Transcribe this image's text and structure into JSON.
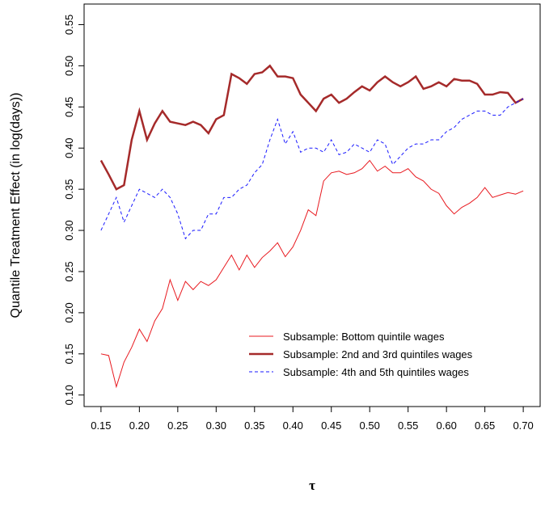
{
  "chart_data": {
    "type": "line",
    "xlabel": "τ",
    "ylabel": "Quantile Treatment Effect (in log(days))",
    "x": [
      0.15,
      0.16,
      0.17,
      0.18,
      0.19,
      0.2,
      0.21,
      0.22,
      0.23,
      0.24,
      0.25,
      0.26,
      0.27,
      0.28,
      0.29,
      0.3,
      0.31,
      0.32,
      0.33,
      0.34,
      0.35,
      0.36,
      0.37,
      0.38,
      0.39,
      0.4,
      0.41,
      0.42,
      0.43,
      0.44,
      0.45,
      0.46,
      0.47,
      0.48,
      0.49,
      0.5,
      0.51,
      0.52,
      0.53,
      0.54,
      0.55,
      0.56,
      0.57,
      0.58,
      0.59,
      0.6,
      0.61,
      0.62,
      0.63,
      0.64,
      0.65,
      0.66,
      0.67,
      0.68,
      0.69,
      0.7
    ],
    "series": [
      {
        "name": "Subsample: Bottom quintile wages",
        "color": "#e8191f",
        "width": 1,
        "dash": "none",
        "values": [
          0.15,
          0.148,
          0.11,
          0.14,
          0.158,
          0.18,
          0.165,
          0.19,
          0.205,
          0.24,
          0.215,
          0.238,
          0.228,
          0.238,
          0.233,
          0.24,
          0.255,
          0.27,
          0.252,
          0.27,
          0.255,
          0.267,
          0.275,
          0.285,
          0.268,
          0.28,
          0.3,
          0.325,
          0.318,
          0.36,
          0.37,
          0.372,
          0.368,
          0.37,
          0.375,
          0.385,
          0.372,
          0.378,
          0.37,
          0.37,
          0.375,
          0.365,
          0.36,
          0.35,
          0.345,
          0.33,
          0.32,
          0.328,
          0.333,
          0.34,
          0.352,
          0.34,
          0.343,
          0.346,
          0.344,
          0.348
        ]
      },
      {
        "name": "Subsample: 2nd and 3rd quintiles wages",
        "color": "#a52a2a",
        "width": 2.5,
        "dash": "none",
        "values": [
          0.385,
          0.368,
          0.35,
          0.355,
          0.41,
          0.445,
          0.41,
          0.43,
          0.445,
          0.432,
          0.43,
          0.428,
          0.432,
          0.428,
          0.418,
          0.435,
          0.44,
          0.49,
          0.485,
          0.478,
          0.49,
          0.492,
          0.5,
          0.487,
          0.487,
          0.485,
          0.465,
          0.455,
          0.445,
          0.46,
          0.465,
          0.455,
          0.46,
          0.468,
          0.475,
          0.47,
          0.48,
          0.487,
          0.48,
          0.475,
          0.48,
          0.487,
          0.472,
          0.475,
          0.48,
          0.475,
          0.484,
          0.482,
          0.482,
          0.478,
          0.465,
          0.465,
          0.468,
          0.467,
          0.455,
          0.46
        ]
      },
      {
        "name": "Subsample: 4th and 5th quintiles wages",
        "color": "#1a1aff",
        "width": 1,
        "dash": "4 3",
        "values": [
          0.3,
          0.32,
          0.34,
          0.31,
          0.33,
          0.35,
          0.345,
          0.34,
          0.35,
          0.34,
          0.32,
          0.29,
          0.3,
          0.3,
          0.32,
          0.32,
          0.34,
          0.34,
          0.35,
          0.355,
          0.37,
          0.38,
          0.41,
          0.435,
          0.405,
          0.42,
          0.395,
          0.4,
          0.4,
          0.395,
          0.41,
          0.392,
          0.395,
          0.405,
          0.4,
          0.395,
          0.41,
          0.405,
          0.38,
          0.39,
          0.4,
          0.405,
          0.405,
          0.41,
          0.41,
          0.42,
          0.425,
          0.435,
          0.44,
          0.445,
          0.445,
          0.44,
          0.44,
          0.45,
          0.455,
          0.46
        ]
      }
    ],
    "xlim": [
      0.128,
      0.722
    ],
    "ylim": [
      0.086,
      0.575
    ],
    "xticks": [
      0.15,
      {
        "value": 0.2,
        "label": "0.20"
      },
      0.25,
      {
        "value": 0.3,
        "label": "0.30"
      },
      0.35,
      {
        "value": 0.4,
        "label": "0.40"
      },
      0.45,
      {
        "value": 0.5,
        "label": "0.50"
      },
      0.55,
      {
        "value": 0.6,
        "label": "0.60"
      },
      0.65,
      {
        "value": 0.7,
        "label": "0.70"
      }
    ],
    "yticks": [
      {
        "value": 0.1,
        "label": "0.10"
      },
      0.15,
      {
        "value": 0.2,
        "label": "0.20"
      },
      0.25,
      {
        "value": 0.3,
        "label": "0.30"
      },
      0.35,
      {
        "value": 0.4,
        "label": "0.40"
      },
      0.45,
      {
        "value": 0.5,
        "label": "0.50"
      },
      0.55
    ],
    "legend": "bottom-center"
  }
}
